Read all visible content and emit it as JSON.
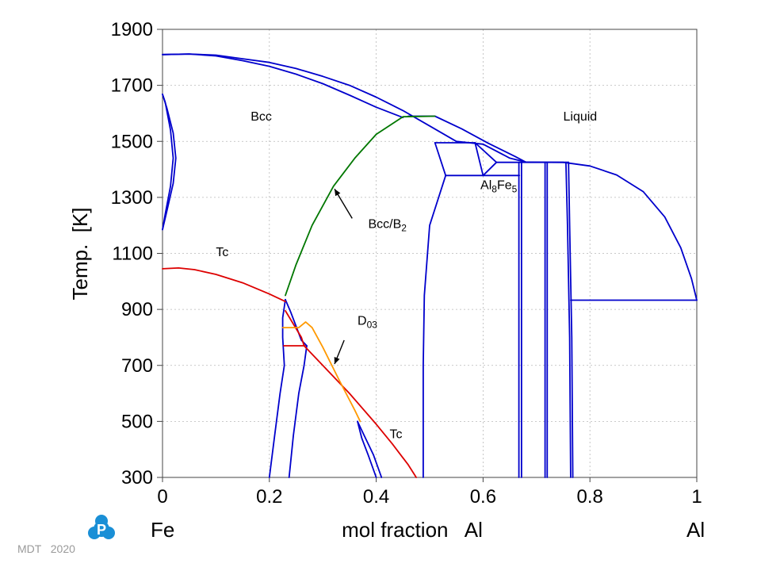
{
  "chart_data": {
    "type": "line",
    "xlabel": "mol fraction   Al",
    "ylabel": "Temp.  [K]",
    "xlim": [
      0,
      1
    ],
    "ylim": [
      300,
      1900
    ],
    "x_ticks": [
      "0",
      "0.2",
      "0.4",
      "0.6",
      "0.8",
      "1"
    ],
    "y_ticks": [
      "300",
      "500",
      "700",
      "900",
      "1100",
      "1300",
      "1500",
      "1700",
      "1900"
    ],
    "grid": true,
    "endpoint_labels": {
      "left": "Fe",
      "right": "Al"
    },
    "colors": {
      "phase_boundary": "#0000cc",
      "bcc_b2": "#007700",
      "tc": "#dd0000",
      "d03": "#ff9900"
    },
    "annotations": [
      {
        "text": "Bcc",
        "x": 0.165,
        "y": 1575
      },
      {
        "text": "Liquid",
        "x": 0.75,
        "y": 1575
      },
      {
        "text": "Al8Fe5",
        "x": 0.595,
        "y": 1330
      },
      {
        "text": "Bcc/B2",
        "x": 0.385,
        "y": 1190
      },
      {
        "text": "Tc",
        "x": 0.1,
        "y": 1090
      },
      {
        "text": "D03",
        "x": 0.365,
        "y": 845
      },
      {
        "text": "Tc",
        "x": 0.425,
        "y": 440
      }
    ],
    "arrows": [
      {
        "from": [
          0.355,
          1225
        ],
        "to": [
          0.322,
          1330
        ]
      },
      {
        "from": [
          0.34,
          790
        ],
        "to": [
          0.322,
          705
        ]
      }
    ],
    "series": [
      {
        "color": "phase_boundary",
        "points": [
          [
            0,
            1810
          ],
          [
            0.05,
            1812
          ],
          [
            0.1,
            1808
          ],
          [
            0.15,
            1795
          ],
          [
            0.2,
            1782
          ],
          [
            0.25,
            1760
          ],
          [
            0.3,
            1732
          ],
          [
            0.35,
            1700
          ],
          [
            0.4,
            1658
          ],
          [
            0.45,
            1610
          ],
          [
            0.5,
            1555
          ],
          [
            0.55,
            1500
          ],
          [
            0.6,
            1490
          ],
          [
            0.65,
            1440
          ],
          [
            0.68,
            1426
          ]
        ]
      },
      {
        "color": "phase_boundary",
        "points": [
          [
            0,
            1810
          ],
          [
            0.05,
            1812
          ],
          [
            0.1,
            1805
          ],
          [
            0.15,
            1788
          ],
          [
            0.2,
            1768
          ],
          [
            0.25,
            1740
          ],
          [
            0.3,
            1706
          ],
          [
            0.35,
            1665
          ],
          [
            0.4,
            1622
          ],
          [
            0.45,
            1585
          ]
        ]
      },
      {
        "color": "phase_boundary",
        "points": [
          [
            0.46,
            1590
          ],
          [
            0.51,
            1590
          ],
          [
            0.56,
            1545
          ],
          [
            0.61,
            1493
          ],
          [
            0.66,
            1446
          ],
          [
            0.68,
            1426
          ]
        ]
      },
      {
        "color": "phase_boundary",
        "points": [
          [
            0.51,
            1495
          ],
          [
            0.585,
            1495
          ]
        ]
      },
      {
        "color": "phase_boundary",
        "points": [
          [
            0.53,
            1378
          ],
          [
            0.668,
            1378
          ]
        ]
      },
      {
        "color": "phase_boundary",
        "points": [
          [
            0.51,
            1495
          ],
          [
            0.53,
            1378
          ]
        ]
      },
      {
        "color": "phase_boundary",
        "points": [
          [
            0.53,
            1378
          ],
          [
            0.5,
            1200
          ],
          [
            0.49,
            950
          ],
          [
            0.488,
            700
          ],
          [
            0.488,
            300
          ]
        ]
      },
      {
        "color": "phase_boundary",
        "points": [
          [
            0.585,
            1495
          ],
          [
            0.6,
            1378
          ]
        ]
      },
      {
        "color": "phase_boundary",
        "points": [
          [
            0.585,
            1495
          ],
          [
            0.625,
            1425
          ]
        ]
      },
      {
        "color": "phase_boundary",
        "points": [
          [
            0.6,
            1378
          ],
          [
            0.625,
            1425
          ]
        ]
      },
      {
        "color": "phase_boundary",
        "points": [
          [
            0.625,
            1425
          ],
          [
            0.667,
            1425
          ]
        ]
      },
      {
        "color": "phase_boundary",
        "points": [
          [
            0.667,
            1425
          ],
          [
            0.667,
            300
          ]
        ]
      },
      {
        "color": "phase_boundary",
        "points": [
          [
            0.672,
            1425
          ],
          [
            0.672,
            300
          ]
        ]
      },
      {
        "color": "phase_boundary",
        "points": [
          [
            0.667,
            1425
          ],
          [
            0.76,
            1425
          ]
        ]
      },
      {
        "color": "phase_boundary",
        "points": [
          [
            0.716,
            1425
          ],
          [
            0.716,
            300
          ]
        ]
      },
      {
        "color": "phase_boundary",
        "points": [
          [
            0.72,
            1425
          ],
          [
            0.72,
            300
          ]
        ]
      },
      {
        "color": "phase_boundary",
        "points": [
          [
            0.755,
            1425
          ],
          [
            0.758,
            1200
          ],
          [
            0.762,
            800
          ],
          [
            0.764,
            300
          ]
        ]
      },
      {
        "color": "phase_boundary",
        "points": [
          [
            0.76,
            1425
          ],
          [
            0.762,
            1200
          ],
          [
            0.766,
            800
          ],
          [
            0.768,
            300
          ]
        ]
      },
      {
        "color": "phase_boundary",
        "points": [
          [
            0.68,
            1426
          ],
          [
            0.75,
            1425
          ],
          [
            0.8,
            1412
          ],
          [
            0.85,
            1380
          ],
          [
            0.9,
            1320
          ],
          [
            0.94,
            1230
          ],
          [
            0.97,
            1120
          ],
          [
            0.99,
            1010
          ],
          [
            1,
            933
          ]
        ]
      },
      {
        "color": "phase_boundary",
        "points": [
          [
            0.764,
            933
          ],
          [
            1,
            933
          ]
        ]
      },
      {
        "color": "phase_boundary",
        "points": [
          [
            0,
            1668
          ],
          [
            0.005,
            1640
          ],
          [
            0.015,
            1540
          ],
          [
            0.02,
            1440
          ],
          [
            0.015,
            1340
          ],
          [
            0.005,
            1240
          ],
          [
            0,
            1185
          ]
        ]
      },
      {
        "color": "phase_boundary",
        "points": [
          [
            0,
            1668
          ],
          [
            0.008,
            1620
          ],
          [
            0.02,
            1530
          ],
          [
            0.025,
            1440
          ],
          [
            0.02,
            1350
          ],
          [
            0.008,
            1250
          ],
          [
            0,
            1185
          ]
        ]
      },
      {
        "color": "phase_boundary",
        "points": [
          [
            0.23,
            935
          ],
          [
            0.24,
            890
          ],
          [
            0.26,
            790
          ],
          [
            0.27,
            770
          ]
        ]
      },
      {
        "color": "phase_boundary",
        "points": [
          [
            0.23,
            935
          ],
          [
            0.225,
            870
          ],
          [
            0.225,
            800
          ],
          [
            0.228,
            700
          ],
          [
            0.22,
            600
          ],
          [
            0.21,
            450
          ],
          [
            0.2,
            300
          ]
        ]
      },
      {
        "color": "phase_boundary",
        "points": [
          [
            0.27,
            770
          ],
          [
            0.265,
            700
          ],
          [
            0.255,
            600
          ],
          [
            0.245,
            450
          ],
          [
            0.237,
            300
          ]
        ]
      },
      {
        "color": "phase_boundary",
        "points": [
          [
            0.365,
            500
          ],
          [
            0.38,
            440
          ],
          [
            0.395,
            380
          ],
          [
            0.41,
            300
          ]
        ]
      },
      {
        "color": "phase_boundary",
        "points": [
          [
            0.365,
            500
          ],
          [
            0.373,
            440
          ],
          [
            0.385,
            380
          ],
          [
            0.4,
            300
          ]
        ]
      },
      {
        "color": "bcc_b2",
        "points": [
          [
            0.23,
            950
          ],
          [
            0.25,
            1060
          ],
          [
            0.28,
            1200
          ],
          [
            0.32,
            1340
          ],
          [
            0.36,
            1440
          ],
          [
            0.4,
            1525
          ],
          [
            0.45,
            1588
          ],
          [
            0.51,
            1590
          ]
        ]
      },
      {
        "color": "tc",
        "points": [
          [
            0,
            1045
          ],
          [
            0.03,
            1048
          ],
          [
            0.06,
            1042
          ],
          [
            0.1,
            1025
          ],
          [
            0.15,
            995
          ],
          [
            0.2,
            955
          ],
          [
            0.23,
            928
          ]
        ]
      },
      {
        "color": "tc",
        "points": [
          [
            0.23,
            895
          ],
          [
            0.26,
            800
          ],
          [
            0.265,
            770
          ],
          [
            0.3,
            700
          ],
          [
            0.35,
            600
          ],
          [
            0.4,
            490
          ],
          [
            0.43,
            420
          ],
          [
            0.46,
            345
          ],
          [
            0.475,
            300
          ]
        ]
      },
      {
        "color": "tc",
        "points": [
          [
            0.227,
            770
          ],
          [
            0.267,
            770
          ]
        ]
      },
      {
        "color": "d03",
        "points": [
          [
            0.225,
            835
          ],
          [
            0.255,
            835
          ],
          [
            0.268,
            855
          ],
          [
            0.28,
            835
          ],
          [
            0.3,
            765
          ],
          [
            0.33,
            650
          ],
          [
            0.36,
            540
          ],
          [
            0.37,
            500
          ]
        ]
      }
    ]
  },
  "footer": {
    "watermark": "MDT   2020",
    "logo_letter": "P"
  }
}
